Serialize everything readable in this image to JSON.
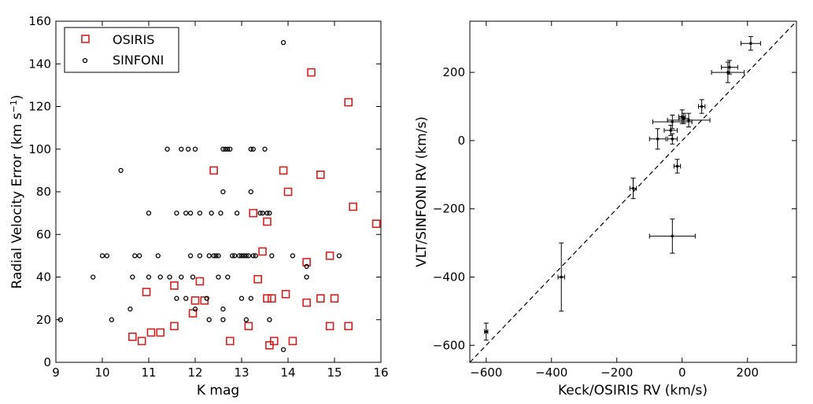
{
  "chart_data": [
    {
      "type": "scatter",
      "xlabel": "K mag",
      "ylabel": "Radial Velocity Error (km s",
      "ylabel_sup": "−1",
      "ylabel_end": ")",
      "xlim": [
        9,
        16
      ],
      "ylim": [
        0,
        160
      ],
      "xticks": [
        "9",
        "10",
        "11",
        "12",
        "13",
        "14",
        "15",
        "16"
      ],
      "yticks": [
        "0",
        "20",
        "40",
        "60",
        "80",
        "100",
        "120",
        "140",
        "160"
      ],
      "legend_position": "top-left",
      "series": [
        {
          "name": "OSIRIS",
          "marker": "square",
          "color": "#d62020",
          "points": [
            [
              10.65,
              12
            ],
            [
              10.85,
              10
            ],
            [
              10.95,
              33
            ],
            [
              11.05,
              14
            ],
            [
              11.25,
              14
            ],
            [
              11.55,
              36
            ],
            [
              11.55,
              17
            ],
            [
              11.95,
              23
            ],
            [
              12.0,
              29
            ],
            [
              12.1,
              38
            ],
            [
              12.2,
              29
            ],
            [
              12.4,
              90
            ],
            [
              12.75,
              10
            ],
            [
              13.15,
              17
            ],
            [
              13.25,
              70
            ],
            [
              13.35,
              39
            ],
            [
              13.45,
              52
            ],
            [
              13.55,
              66
            ],
            [
              13.55,
              30
            ],
            [
              13.6,
              8
            ],
            [
              13.65,
              30
            ],
            [
              13.7,
              10
            ],
            [
              13.9,
              90
            ],
            [
              13.95,
              32
            ],
            [
              14.0,
              80
            ],
            [
              14.1,
              10
            ],
            [
              14.4,
              47
            ],
            [
              14.4,
              28
            ],
            [
              14.5,
              136
            ],
            [
              14.7,
              88
            ],
            [
              14.7,
              30
            ],
            [
              14.9,
              50
            ],
            [
              14.9,
              17
            ],
            [
              15.0,
              30
            ],
            [
              15.3,
              122
            ],
            [
              15.3,
              17
            ],
            [
              15.4,
              73
            ],
            [
              15.9,
              65
            ]
          ]
        },
        {
          "name": "SINFONI",
          "marker": "circle",
          "color": "#000000",
          "points": [
            [
              9.1,
              20
            ],
            [
              9.8,
              40
            ],
            [
              10.0,
              50
            ],
            [
              10.1,
              50
            ],
            [
              10.2,
              20
            ],
            [
              10.4,
              90
            ],
            [
              10.6,
              25
            ],
            [
              10.65,
              40
            ],
            [
              10.7,
              50
            ],
            [
              10.8,
              50
            ],
            [
              11.0,
              70
            ],
            [
              11.0,
              40
            ],
            [
              11.2,
              50
            ],
            [
              11.25,
              40
            ],
            [
              11.4,
              100
            ],
            [
              11.45,
              40
            ],
            [
              11.6,
              70
            ],
            [
              11.6,
              30
            ],
            [
              11.7,
              100
            ],
            [
              11.7,
              40
            ],
            [
              11.8,
              70
            ],
            [
              11.8,
              30
            ],
            [
              11.85,
              100
            ],
            [
              11.9,
              70
            ],
            [
              11.9,
              50
            ],
            [
              11.95,
              40
            ],
            [
              12.0,
              100
            ],
            [
              12.0,
              25
            ],
            [
              12.1,
              70
            ],
            [
              12.1,
              50
            ],
            [
              12.25,
              30
            ],
            [
              12.3,
              50
            ],
            [
              12.3,
              20
            ],
            [
              12.35,
              70
            ],
            [
              12.4,
              50
            ],
            [
              12.45,
              50
            ],
            [
              12.5,
              50
            ],
            [
              12.5,
              40
            ],
            [
              12.55,
              70
            ],
            [
              12.6,
              100
            ],
            [
              12.6,
              80
            ],
            [
              12.6,
              25
            ],
            [
              12.6,
              20
            ],
            [
              12.65,
              100
            ],
            [
              12.7,
              100
            ],
            [
              12.7,
              40
            ],
            [
              12.75,
              100
            ],
            [
              12.8,
              50
            ],
            [
              12.85,
              50
            ],
            [
              12.9,
              70
            ],
            [
              12.95,
              50
            ],
            [
              13.0,
              50
            ],
            [
              13.0,
              30
            ],
            [
              13.05,
              50
            ],
            [
              13.1,
              50
            ],
            [
              13.1,
              20
            ],
            [
              13.15,
              50
            ],
            [
              13.2,
              100
            ],
            [
              13.2,
              80
            ],
            [
              13.2,
              30
            ],
            [
              13.25,
              100
            ],
            [
              13.25,
              50
            ],
            [
              13.3,
              50
            ],
            [
              13.4,
              70
            ],
            [
              13.45,
              70
            ],
            [
              13.5,
              100
            ],
            [
              13.55,
              70
            ],
            [
              13.6,
              70
            ],
            [
              13.6,
              20
            ],
            [
              13.65,
              50
            ],
            [
              13.9,
              150
            ],
            [
              13.9,
              6
            ],
            [
              14.1,
              50
            ],
            [
              14.4,
              40
            ],
            [
              14.4,
              45
            ],
            [
              15.1,
              50
            ]
          ]
        }
      ]
    },
    {
      "type": "scatter",
      "xlabel": "Keck/OSIRIS RV (km/s)",
      "ylabel": "VLT/SINFONI RV (km/s)",
      "xlim": [
        -650,
        350
      ],
      "ylim": [
        -650,
        350
      ],
      "xticks": [
        "−600",
        "−400",
        "−200",
        "0",
        "200"
      ],
      "xtick_values": [
        -600,
        -400,
        -200,
        0,
        200
      ],
      "yticks": [
        "−600",
        "−400",
        "−200",
        "0",
        "200"
      ],
      "ytick_values": [
        -600,
        -400,
        -200,
        0,
        200
      ],
      "reference_line": "dashed one-to-one line",
      "series": [
        {
          "name": "",
          "color": "#000000",
          "points": [
            {
              "x": -600,
              "y": -560,
              "xerr": 5,
              "yerr": 25
            },
            {
              "x": -370,
              "y": -400,
              "xerr": 10,
              "yerr": 100
            },
            {
              "x": -150,
              "y": -140,
              "xerr": 10,
              "yerr": 30
            },
            {
              "x": -75,
              "y": 5,
              "xerr": 25,
              "yerr": 30
            },
            {
              "x": -35,
              "y": 30,
              "xerr": 20,
              "yerr": 15
            },
            {
              "x": -30,
              "y": 5,
              "xerr": 15,
              "yerr": 15
            },
            {
              "x": -30,
              "y": 55,
              "xerr": 60,
              "yerr": 20
            },
            {
              "x": -30,
              "y": -280,
              "xerr": 70,
              "yerr": 50
            },
            {
              "x": -15,
              "y": -75,
              "xerr": 10,
              "yerr": 20
            },
            {
              "x": 0,
              "y": 70,
              "xerr": 10,
              "yerr": 20
            },
            {
              "x": 5,
              "y": 65,
              "xerr": 15,
              "yerr": 15
            },
            {
              "x": 20,
              "y": 60,
              "xerr": 65,
              "yerr": 20
            },
            {
              "x": 60,
              "y": 100,
              "xerr": 10,
              "yerr": 20
            },
            {
              "x": 140,
              "y": 200,
              "xerr": 50,
              "yerr": 30
            },
            {
              "x": 145,
              "y": 215,
              "xerr": 25,
              "yerr": 20
            },
            {
              "x": 210,
              "y": 285,
              "xerr": 30,
              "yerr": 20
            }
          ]
        }
      ]
    }
  ]
}
